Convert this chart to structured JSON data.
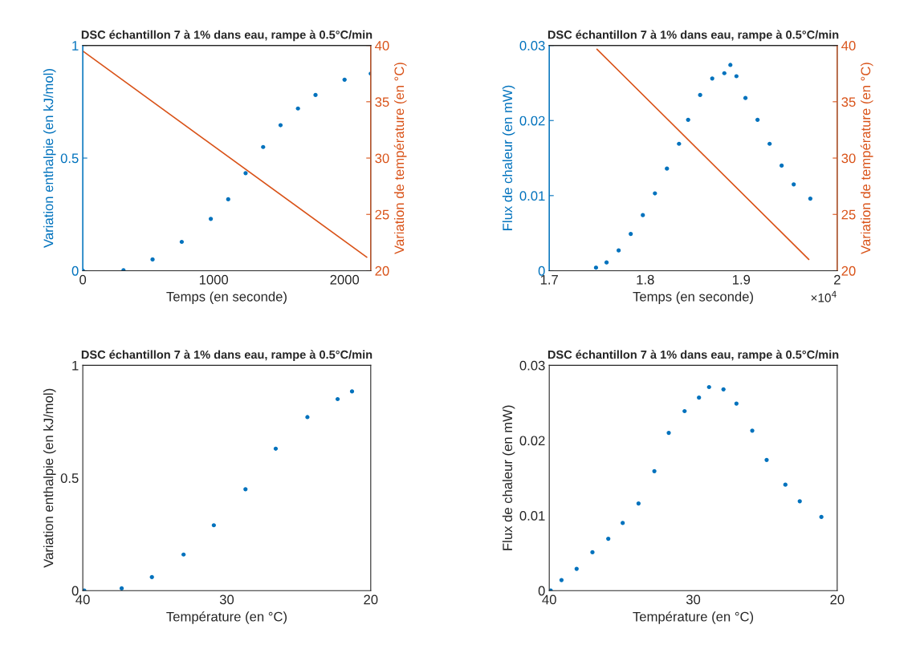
{
  "chart_data": [
    {
      "type": "scatter",
      "title": "DSC échantillon 7 à 1% dans eau, rampe à 0.5°C/min",
      "xlabel": "Temps (en seconde)",
      "ylabel": "Variation enthalpie (en kJ/mol)",
      "y2label": "Variation de température (en °C)",
      "grid": false,
      "xlim": [
        0,
        2200
      ],
      "xticks": [
        0,
        1000,
        2000
      ],
      "ylim": [
        0,
        1
      ],
      "yticks": [
        0,
        0.5,
        1
      ],
      "y2lim": [
        20,
        40
      ],
      "y2ticks": [
        20,
        25,
        30,
        35,
        40
      ],
      "series": [
        {
          "color": "#0072bd",
          "marker": "circle",
          "x": [
            0,
            311,
            533,
            756,
            978,
            1111,
            1244,
            1378,
            1511,
            1644,
            1778,
            2000,
            2200
          ],
          "values": [
            0,
            0.002,
            0.05,
            0.128,
            0.23,
            0.317,
            0.433,
            0.549,
            0.646,
            0.72,
            0.78,
            0.848,
            0.875
          ]
        },
        {
          "type": "line",
          "axis": "y2",
          "color": "#d95319",
          "x": [
            0,
            2170
          ],
          "values": [
            39.5,
            21.2
          ]
        }
      ]
    },
    {
      "type": "scatter",
      "title": "DSC échantillon 7 à 1% dans eau, rampe à 0.5°C/min",
      "xlabel": "Temps (en seconde)",
      "ylabel": "Flux de chaleur (en mW)",
      "y2label": "Variation de température (en °C)",
      "grid": false,
      "annotations": [
        "×10$^{4}$"
      ],
      "xlim": [
        1.7,
        2
      ],
      "xticks": [
        1.7,
        1.8,
        1.9,
        2
      ],
      "ylim": [
        0,
        0.03
      ],
      "yticks": [
        0,
        0.01,
        0.02,
        0.03
      ],
      "y2lim": [
        20,
        40
      ],
      "y2ticks": [
        20,
        25,
        30,
        35,
        40
      ],
      "series": [
        {
          "color": "#0072bd",
          "marker": "circle",
          "x": [
            1.7487,
            1.7597,
            1.7723,
            1.7849,
            1.7975,
            1.8101,
            1.8226,
            1.8352,
            1.8447,
            1.8572,
            1.8698,
            1.8824,
            1.8887,
            1.895,
            1.9044,
            1.917,
            1.9296,
            1.9421,
            1.9547,
            1.972
          ],
          "values": [
            0.0004,
            0.0011,
            0.0027,
            0.0049,
            0.0074,
            0.0103,
            0.0136,
            0.0169,
            0.0201,
            0.0234,
            0.0256,
            0.0263,
            0.0274,
            0.0259,
            0.023,
            0.0201,
            0.0169,
            0.014,
            0.0115,
            0.0096
          ]
        },
        {
          "type": "line",
          "axis": "y2",
          "color": "#d95319",
          "x": [
            1.7497,
            1.9704
          ],
          "values": [
            39.66,
            21.0
          ]
        }
      ]
    },
    {
      "type": "scatter",
      "title": "DSC échantillon 7 à 1% dans eau, rampe à 0.5°C/min",
      "xlabel": "Température (en °C)",
      "ylabel": "Variation enthalpie (en kJ/mol)",
      "grid": false,
      "xlim": [
        40,
        20
      ],
      "xticks": [
        40,
        30,
        20
      ],
      "ylim": [
        0,
        1
      ],
      "yticks": [
        0,
        0.5,
        1
      ],
      "series": [
        {
          "color": "#0072bd",
          "marker": "circle",
          "x": [
            39.9,
            37.3,
            35.2,
            33.0,
            30.9,
            28.7,
            26.6,
            24.4,
            22.3,
            21.3
          ],
          "values": [
            0,
            0.01,
            0.06,
            0.16,
            0.29,
            0.45,
            0.63,
            0.77,
            0.85,
            0.884
          ]
        }
      ]
    },
    {
      "type": "scatter",
      "title": "DSC échantillon 7 à 1% dans eau, rampe à 0.5°C/min",
      "xlabel": "Température (en °C)",
      "ylabel": "Flux de chaleur (en mW)",
      "grid": false,
      "xlim": [
        40,
        20
      ],
      "xticks": [
        40,
        30,
        20
      ],
      "ylim": [
        0,
        0.03
      ],
      "yticks": [
        0,
        0.01,
        0.02,
        0.03
      ],
      "series": [
        {
          "color": "#0072bd",
          "marker": "circle",
          "x": [
            39.9,
            39.15,
            38.1,
            37.0,
            35.9,
            34.9,
            33.8,
            32.7,
            31.7,
            30.6,
            29.6,
            28.9,
            27.9,
            27.0,
            25.9,
            24.9,
            23.6,
            22.6,
            21.1
          ],
          "values": [
            0.0,
            0.0014,
            0.0029,
            0.0051,
            0.0069,
            0.009,
            0.0116,
            0.0159,
            0.021,
            0.0239,
            0.0257,
            0.0271,
            0.0268,
            0.0249,
            0.0213,
            0.0174,
            0.0141,
            0.0119,
            0.0098
          ]
        }
      ]
    }
  ]
}
